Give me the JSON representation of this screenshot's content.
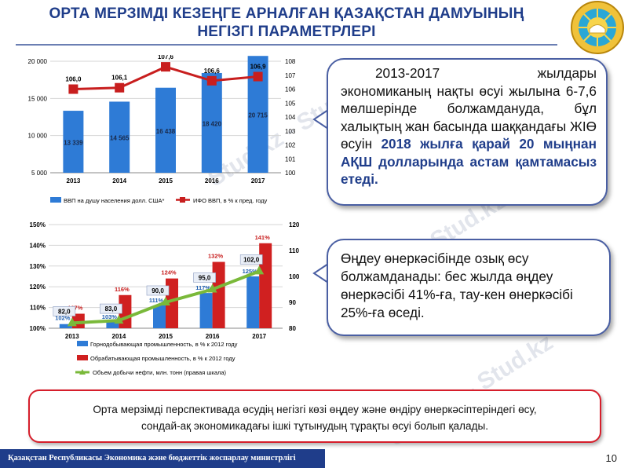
{
  "header": {
    "title_line1": "ОРТА МЕРЗІМДІ КЕЗЕҢГЕ АРНАЛҒАН ҚАЗАҚСТАН ДАМУЫНЫҢ",
    "title_line2": "НЕГІЗГІ ПАРАМЕТРЛЕРІ"
  },
  "callout1": {
    "text_start": "2013-2017 жылдары экономиканың нақты өсуі жылына 6-7,6 мөлшерінде болжамдануда, бұл халықтың жан басында шаққандағы ЖІӨ өсуін ",
    "text_bold": "2018 жылға қарай 20 мыңнан АҚШ долларында астам қамтамасыз етеді."
  },
  "callout2": {
    "text": "Өңдеу өнеркәсібінде озық өсу болжамданады: бес жылда өңдеу өнеркәсібі 41%-ға, тау-кен өнеркәсібі 25%-ға өседі."
  },
  "bottom_box": {
    "line1": "Орта мерзімді перспективада өсудің негізгі көзі өңдеу және өндіру өнеркәсіптеріндегі өсу,",
    "line2": "сондай-ақ экономикадағы ішкі тұтынудың тұрақты өсуі болып қалады."
  },
  "footer": {
    "ministry": "Қазақстан Республикасы Экономика және бюджеттік жоспарлау министрлігі",
    "page_number": "10"
  },
  "watermark": "Stud.kz - Stud.kz",
  "colors": {
    "title_blue": "#1f3d8a",
    "bar_blue": "#2e7bd6",
    "line_red": "#c81e1e",
    "bar_red": "#d02020",
    "line_green": "#7ab93a",
    "box_red_border": "#d61e2b"
  },
  "chart_data": [
    {
      "type": "bar",
      "categories": [
        "2013",
        "2014",
        "2015",
        "2016",
        "2017"
      ],
      "series": [
        {
          "name": "ВВП на душу населения долл. США*",
          "type": "bar",
          "axis": "left",
          "values": [
            13339,
            14565,
            16438,
            18420,
            20715
          ],
          "labels": [
            "13 339",
            "14 565",
            "16 438",
            "18 420",
            "20 715"
          ]
        },
        {
          "name": "ИФО ВВП, в % к пред. году",
          "type": "line",
          "axis": "right",
          "values": [
            106.0,
            106.1,
            107.6,
            106.6,
            106.9
          ],
          "labels": [
            "106,0",
            "106,1",
            "107,6",
            "106,6",
            "106,9"
          ]
        }
      ],
      "y_left": {
        "ylim": [
          5000,
          20000
        ],
        "ticks": [
          "5 000",
          "10 000",
          "15 000",
          "20 000"
        ]
      },
      "y_right": {
        "ylim": [
          100,
          108
        ],
        "ticks": [
          "100",
          "101",
          "102",
          "103",
          "104",
          "105",
          "106",
          "107",
          "108"
        ]
      },
      "legend": "bottom"
    },
    {
      "type": "bar",
      "categories": [
        "2013",
        "2014",
        "2015",
        "2016",
        "2017"
      ],
      "series": [
        {
          "name": "Горнодобывающая промышленность, в % к 2012 году",
          "type": "bar",
          "axis": "left",
          "values": [
            102,
            103,
            111,
            117,
            125
          ],
          "labels": [
            "102%",
            "103%",
            "111%",
            "117%",
            "125%"
          ]
        },
        {
          "name": "Обрабатывающая промышленность, в % к 2012 году",
          "type": "bar",
          "axis": "left",
          "values": [
            107,
            116,
            124,
            132,
            141
          ],
          "labels": [
            "107%",
            "116%",
            "124%",
            "132%",
            "141%"
          ]
        },
        {
          "name": "Объем добычи нефти, млн. тонн (правая шкала)",
          "type": "line",
          "axis": "right",
          "values": [
            82.0,
            83.0,
            90.0,
            95.0,
            102.0
          ],
          "labels": [
            "82,0",
            "83,0",
            "90,0",
            "95,0",
            "102,0"
          ]
        }
      ],
      "y_left": {
        "ylim": [
          100,
          150
        ],
        "ticks": [
          "100%",
          "110%",
          "120%",
          "130%",
          "140%",
          "150%"
        ]
      },
      "y_right": {
        "ylim": [
          80,
          120
        ],
        "ticks": [
          "80",
          "90",
          "100",
          "110",
          "120"
        ]
      },
      "legend": "bottom"
    }
  ]
}
